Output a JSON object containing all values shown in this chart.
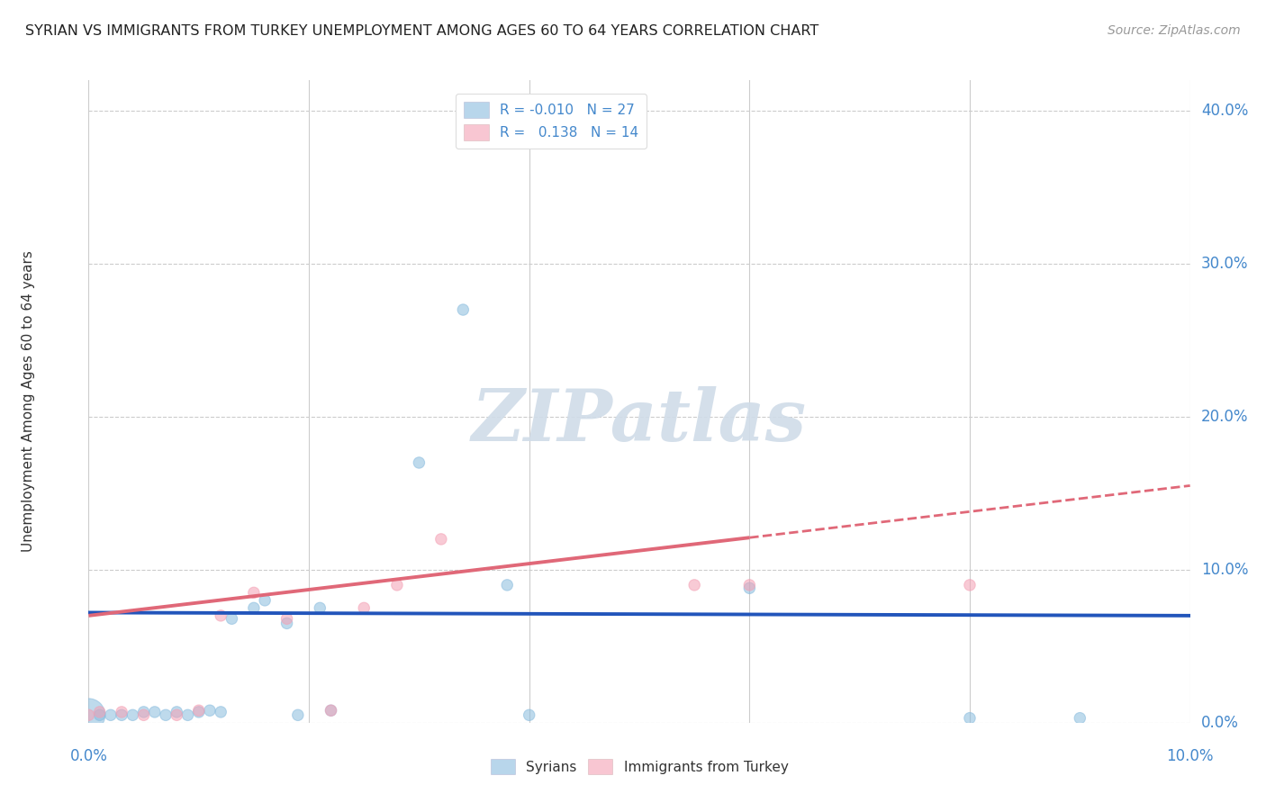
{
  "title": "SYRIAN VS IMMIGRANTS FROM TURKEY UNEMPLOYMENT AMONG AGES 60 TO 64 YEARS CORRELATION CHART",
  "source": "Source: ZipAtlas.com",
  "ylabel": "Unemployment Among Ages 60 to 64 years",
  "ytick_vals": [
    0.0,
    0.1,
    0.2,
    0.3,
    0.4
  ],
  "xlim": [
    0.0,
    0.1
  ],
  "ylim": [
    0.0,
    0.42
  ],
  "syrians_color": "#89bcde",
  "turkey_color": "#f4a0b4",
  "syrian_line_color": "#2255bb",
  "turkey_line_color": "#e06878",
  "background_color": "#ffffff",
  "grid_color": "#cccccc",
  "watermark_color": "#d0dce8",
  "syrians_x": [
    0.0,
    0.001,
    0.002,
    0.003,
    0.004,
    0.005,
    0.006,
    0.007,
    0.008,
    0.009,
    0.01,
    0.011,
    0.012,
    0.013,
    0.015,
    0.016,
    0.018,
    0.019,
    0.021,
    0.022,
    0.03,
    0.034,
    0.038,
    0.04,
    0.06,
    0.08,
    0.09
  ],
  "syrians_y": [
    0.005,
    0.005,
    0.005,
    0.005,
    0.005,
    0.007,
    0.007,
    0.005,
    0.007,
    0.005,
    0.007,
    0.008,
    0.007,
    0.068,
    0.075,
    0.08,
    0.065,
    0.005,
    0.075,
    0.008,
    0.17,
    0.27,
    0.09,
    0.005,
    0.088,
    0.003,
    0.003
  ],
  "syrians_size": [
    700,
    80,
    80,
    80,
    80,
    80,
    80,
    80,
    80,
    80,
    80,
    80,
    80,
    80,
    80,
    80,
    80,
    80,
    80,
    80,
    80,
    80,
    80,
    80,
    80,
    80,
    80
  ],
  "turkey_x": [
    0.0,
    0.001,
    0.003,
    0.005,
    0.008,
    0.01,
    0.012,
    0.015,
    0.018,
    0.022,
    0.025,
    0.028,
    0.032,
    0.055,
    0.06,
    0.08
  ],
  "turkey_y": [
    0.005,
    0.007,
    0.007,
    0.005,
    0.005,
    0.008,
    0.07,
    0.085,
    0.068,
    0.008,
    0.075,
    0.09,
    0.12,
    0.09,
    0.09,
    0.09
  ],
  "turkey_size": [
    80,
    80,
    80,
    80,
    80,
    80,
    80,
    80,
    80,
    80,
    80,
    80,
    80,
    80,
    80,
    80
  ],
  "syrian_R": -0.01,
  "turkey_R": 0.138,
  "syrian_intercept": 0.072,
  "turkey_intercept": 0.07,
  "syrian_slope": -0.02,
  "turkey_slope": 0.85
}
